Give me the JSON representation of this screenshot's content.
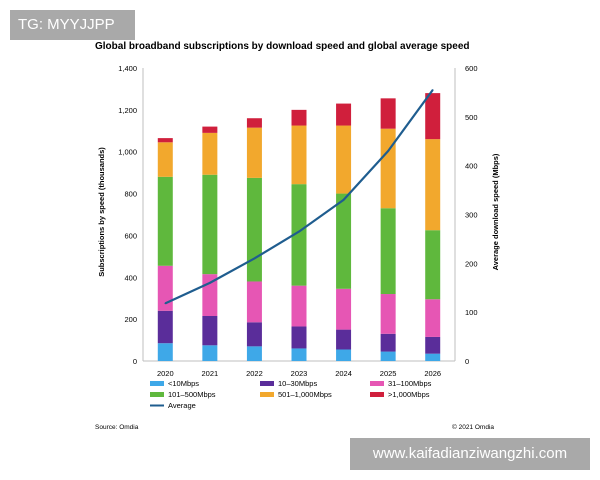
{
  "watermarks": {
    "top_left": "TG: MYYJJPP",
    "bottom_right": "www.kaifadianziwangzhi.com"
  },
  "footer": {
    "source": "Source: Omdia",
    "copyright": "© 2021 Omdia"
  },
  "colors": {
    "lt10": "#3ea8e8",
    "m10_30": "#5a2d9a",
    "m31_100": "#e656b4",
    "m101_500": "#5fb83d",
    "m501_1000": "#f2a82d",
    "gt1000": "#d01f3c",
    "average": "#1f5d8f"
  },
  "chart_data": {
    "type": "bar",
    "stacked": true,
    "title": "Global broadband subscriptions by download speed and global average speed",
    "ylabel": "Subscriptions by speed (thousands)",
    "y2label": "Average download speed (Mbps)",
    "ylim": [
      0,
      1400
    ],
    "y2lim": [
      0,
      600
    ],
    "yticks": [
      "0",
      "200",
      "400",
      "600",
      "800",
      "1,000",
      "1,200",
      "1,400"
    ],
    "y2ticks": [
      "0",
      "100",
      "200",
      "300",
      "400",
      "500",
      "600"
    ],
    "grid": false,
    "legend_position": "bottom",
    "categories": [
      "2020",
      "2021",
      "2022",
      "2023",
      "2024",
      "2025",
      "2026"
    ],
    "series": [
      {
        "name": "<10Mbps",
        "color_key": "lt10",
        "values": [
          85,
          75,
          70,
          60,
          55,
          45,
          35
        ]
      },
      {
        "name": "10–30Mbps",
        "color_key": "m10_30",
        "values": [
          155,
          140,
          115,
          105,
          95,
          85,
          80
        ]
      },
      {
        "name": "31–100Mbps",
        "color_key": "m31_100",
        "values": [
          215,
          200,
          195,
          195,
          195,
          190,
          180
        ]
      },
      {
        "name": "101–500Mbps",
        "color_key": "m101_500",
        "values": [
          425,
          475,
          495,
          485,
          455,
          410,
          330
        ]
      },
      {
        "name": "501–1,000Mbps",
        "color_key": "m501_1000",
        "values": [
          165,
          200,
          240,
          280,
          325,
          380,
          435
        ]
      },
      {
        "name": ">1,000Mbps",
        "color_key": "gt1000",
        "values": [
          20,
          30,
          45,
          75,
          105,
          145,
          220
        ]
      }
    ],
    "line": {
      "name": "Average",
      "color_key": "average",
      "axis": "right",
      "values": [
        118,
        160,
        210,
        265,
        330,
        430,
        555
      ]
    }
  }
}
